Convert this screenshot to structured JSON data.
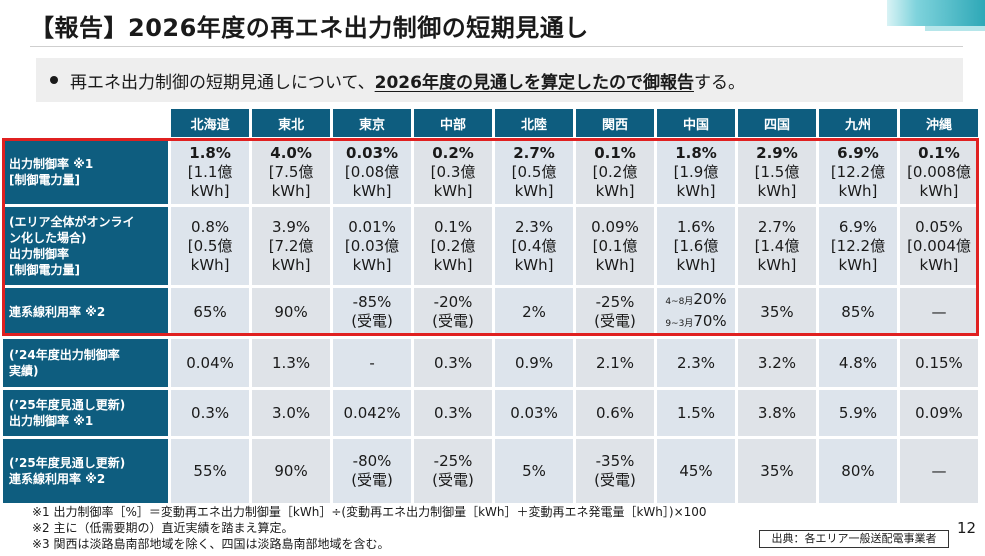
{
  "title": "【報告】2026年度の再エネ出力制御の短期見通し",
  "bullet": {
    "prefix": "再エネ出力制御の短期見通しについて、",
    "emphasis": "2026年度の見通しを算定したので御報告",
    "suffix": "する。"
  },
  "table": {
    "areas": [
      "北海道",
      "東北",
      "東京",
      "中部",
      "北陸",
      "関西",
      "中国",
      "四国",
      "九州",
      "沖縄"
    ],
    "rows": [
      {
        "label": [
          "出力制御率 ※1",
          "[制御電力量]"
        ],
        "cells": [
          [
            "1.8%",
            "[1.1億",
            "kWh]"
          ],
          [
            "4.0%",
            "[7.5億",
            "kWh]"
          ],
          [
            "0.03%",
            "[0.08億",
            "kWh]"
          ],
          [
            "0.2%",
            "[0.3億",
            "kWh]"
          ],
          [
            "2.7%",
            "[0.5億",
            "kWh]"
          ],
          [
            "0.1%",
            "[0.2億",
            "kWh]"
          ],
          [
            "1.8%",
            "[1.9億",
            "kWh]"
          ],
          [
            "2.9%",
            "[1.5億",
            "kWh]"
          ],
          [
            "6.9%",
            "[12.2億",
            "kWh]"
          ],
          [
            "0.1%",
            "[0.008億",
            "kWh]"
          ]
        ]
      },
      {
        "label": [
          "(エリア全体がオンライ",
          "ン化した場合)",
          "出力制御率",
          "[制御電力量]"
        ],
        "cells": [
          [
            "0.8%",
            "[0.5億",
            "kWh]"
          ],
          [
            "3.9%",
            "[7.2億",
            "kWh]"
          ],
          [
            "0.01%",
            "[0.03億",
            "kWh]"
          ],
          [
            "0.1%",
            "[0.2億",
            "kWh]"
          ],
          [
            "2.3%",
            "[0.4億",
            "kWh]"
          ],
          [
            "0.09%",
            "[0.1億",
            "kWh]"
          ],
          [
            "1.6%",
            "[1.6億",
            "kWh]"
          ],
          [
            "2.7%",
            "[1.4億",
            "kWh]"
          ],
          [
            "6.9%",
            "[12.2億",
            "kWh]"
          ],
          [
            "0.05%",
            "[0.004億",
            "kWh]"
          ]
        ]
      },
      {
        "label": [
          "連系線利用率 ※2"
        ],
        "cells": [
          [
            "65%"
          ],
          [
            "90%"
          ],
          [
            "-85%",
            "(受電)"
          ],
          [
            "-20%",
            "(受電)"
          ],
          [
            "2%"
          ],
          [
            "-25%",
            "(受電)"
          ],
          [
            "4~8月",
            "20%",
            "9~3月",
            "70%"
          ],
          [
            "35%"
          ],
          [
            "85%"
          ],
          [
            "—"
          ]
        ]
      },
      {
        "label": [
          "(’24年度出力制御率",
          "実績)"
        ],
        "cells": [
          [
            "0.04%"
          ],
          [
            "1.3%"
          ],
          [
            "-"
          ],
          [
            "0.3%"
          ],
          [
            "0.9%"
          ],
          [
            "2.1%"
          ],
          [
            "2.3%"
          ],
          [
            "3.2%"
          ],
          [
            "4.8%"
          ],
          [
            "0.15%"
          ]
        ]
      },
      {
        "label": [
          "(’25年度見通し更新)",
          "出力制御率 ※1"
        ],
        "cells": [
          [
            "0.3%"
          ],
          [
            "3.0%"
          ],
          [
            "0.042%"
          ],
          [
            "0.3%"
          ],
          [
            "0.03%"
          ],
          [
            "0.6%"
          ],
          [
            "1.5%"
          ],
          [
            "3.8%"
          ],
          [
            "5.9%"
          ],
          [
            "0.09%"
          ]
        ]
      },
      {
        "label": [
          "(’25年度見通し更新)",
          "連系線利用率 ※2"
        ],
        "cells": [
          [
            "55%"
          ],
          [
            "90%"
          ],
          [
            "-80%",
            "(受電)"
          ],
          [
            "-25%",
            "(受電)"
          ],
          [
            "5%"
          ],
          [
            "-35%",
            "(受電)"
          ],
          [
            "45%"
          ],
          [
            "35%"
          ],
          [
            "80%"
          ],
          [
            "—"
          ]
        ]
      }
    ]
  },
  "notes": [
    "※1 出力制御率［%］＝変動再エネ出力制御量［kWh］÷(変動再エネ出力制御量［kWh］＋変動再エネ発電量［kWh］)×100",
    "※2 主に（低需要期の）直近実績を踏まえ算定。",
    "※3 関西は淡路島南部地域を除く、四国は淡路島南部地域を含む。"
  ],
  "source": "出典：各エリア一般送配電事業者",
  "page_number": "12",
  "colors": {
    "header_bg": "#0e5d7f",
    "cell_bg": "#dde4ec",
    "highlight_border": "#e02020"
  }
}
